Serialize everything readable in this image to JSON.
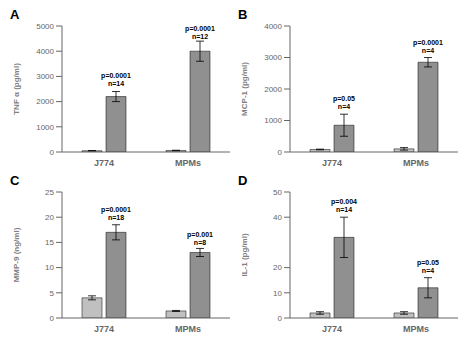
{
  "chart_data": [
    {
      "type": "bar",
      "title": "A",
      "y_label": "TNF α (pg/ml)",
      "categories": [
        "J774",
        "MPMs"
      ],
      "series": [
        {
          "color": "#c0c0c0",
          "values": [
            50,
            60
          ],
          "errors": [
            10,
            10
          ]
        },
        {
          "color": "#909090",
          "values": [
            2200,
            4000
          ],
          "errors": [
            200,
            400
          ]
        }
      ],
      "annotations": [
        {
          "x": "J774",
          "y": 2600,
          "text": "p=0.0001\nn=14"
        },
        {
          "x": "MPMs",
          "y": 4500,
          "text": "p=0.0001\nn=12"
        }
      ],
      "ylim": [
        0,
        5000
      ],
      "yticks": [
        0,
        1000,
        2000,
        3000,
        4000,
        5000
      ],
      "grid": false
    },
    {
      "type": "bar",
      "title": "B",
      "y_label": "MCP-1 (pg/ml)",
      "categories": [
        "J774",
        "MPMs"
      ],
      "series": [
        {
          "color": "#c0c0c0",
          "values": [
            80,
            100
          ],
          "errors": [
            10,
            40
          ]
        },
        {
          "color": "#909090",
          "values": [
            850,
            2850
          ],
          "errors": [
            350,
            150
          ]
        }
      ],
      "annotations": [
        {
          "x": "J774",
          "y": 1350,
          "text": "p=0.05\nn=4"
        },
        {
          "x": "MPMs",
          "y": 3150,
          "text": "p=0.0001\nn=4"
        }
      ],
      "ylim": [
        0,
        4000
      ],
      "yticks": [
        0,
        1000,
        2000,
        3000,
        4000
      ],
      "grid": false
    },
    {
      "type": "bar",
      "title": "C",
      "y_label": "MMP-9 (ng/ml)",
      "categories": [
        "J774",
        "MPMs"
      ],
      "series": [
        {
          "color": "#c0c0c0",
          "values": [
            4.0,
            1.4
          ],
          "errors": [
            0.4,
            0.1
          ]
        },
        {
          "color": "#909090",
          "values": [
            17.0,
            13.0
          ],
          "errors": [
            1.5,
            0.8
          ]
        }
      ],
      "annotations": [
        {
          "x": "J774",
          "y": 19.5,
          "text": "p=0.0001\nn=18"
        },
        {
          "x": "MPMs",
          "y": 14.5,
          "text": "p=0.001\nn=8"
        }
      ],
      "ylim": [
        0,
        25
      ],
      "yticks": [
        0,
        5,
        10,
        15,
        20,
        25
      ],
      "grid": false
    },
    {
      "type": "bar",
      "title": "D",
      "y_label": "IL-1 (pg/ml)",
      "categories": [
        "J774",
        "MPMs"
      ],
      "series": [
        {
          "color": "#c0c0c0",
          "values": [
            2,
            2
          ],
          "errors": [
            0.5,
            0.5
          ]
        },
        {
          "color": "#909090",
          "values": [
            32,
            12
          ],
          "errors": [
            8,
            4
          ]
        }
      ],
      "annotations": [
        {
          "x": "J774",
          "y": 42,
          "text": "p=0.004\nn=14"
        },
        {
          "x": "MPMs",
          "y": 18,
          "text": "p=0.05\nn=4"
        }
      ],
      "ylim": [
        0,
        50
      ],
      "yticks": [
        0,
        10,
        20,
        40,
        50
      ],
      "grid": false
    }
  ]
}
